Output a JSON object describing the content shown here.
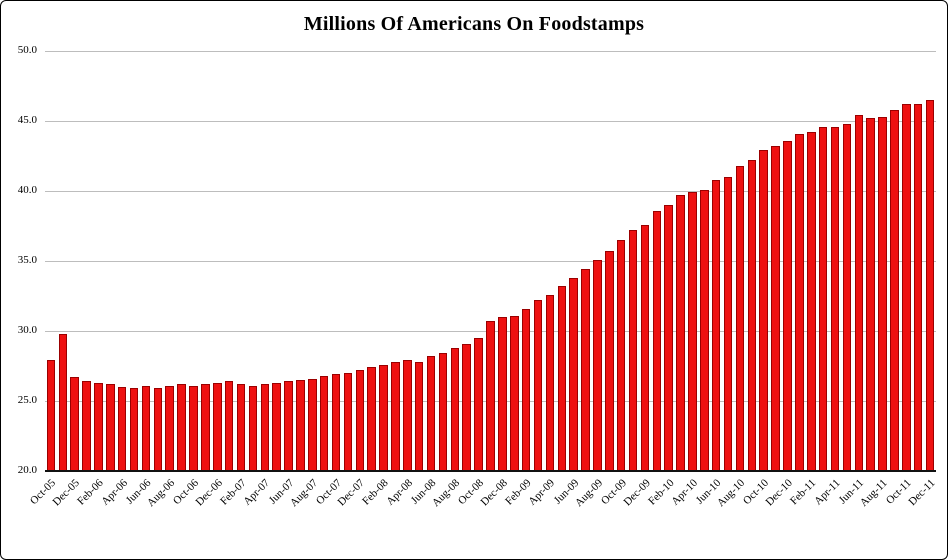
{
  "figure": {
    "background": "#ffffff",
    "border_color": "#000000"
  },
  "chart_data": {
    "type": "bar",
    "title": "Millions Of Americans On Foodstamps",
    "xlabel": "",
    "ylabel": "",
    "ylim": [
      20.0,
      50.0
    ],
    "yticks": [
      20.0,
      25.0,
      30.0,
      35.0,
      40.0,
      45.0,
      50.0
    ],
    "grid": true,
    "legend": "none",
    "x_label_every": 2,
    "bar_color": "#ee1111",
    "bar_border": "#9b0000",
    "categories": [
      "Oct-05",
      "Nov-05",
      "Dec-05",
      "Jan-06",
      "Feb-06",
      "Mar-06",
      "Apr-06",
      "May-06",
      "Jun-06",
      "Jul-06",
      "Aug-06",
      "Sep-06",
      "Oct-06",
      "Nov-06",
      "Dec-06",
      "Jan-07",
      "Feb-07",
      "Mar-07",
      "Apr-07",
      "May-07",
      "Jun-07",
      "Jul-07",
      "Aug-07",
      "Sep-07",
      "Oct-07",
      "Nov-07",
      "Dec-07",
      "Jan-08",
      "Feb-08",
      "Mar-08",
      "Apr-08",
      "May-08",
      "Jun-08",
      "Jul-08",
      "Aug-08",
      "Sep-08",
      "Oct-08",
      "Nov-08",
      "Dec-08",
      "Jan-09",
      "Feb-09",
      "Mar-09",
      "Apr-09",
      "May-09",
      "Jun-09",
      "Jul-09",
      "Aug-09",
      "Sep-09",
      "Oct-09",
      "Nov-09",
      "Dec-09",
      "Jan-10",
      "Feb-10",
      "Mar-10",
      "Apr-10",
      "May-10",
      "Jun-10",
      "Jul-10",
      "Aug-10",
      "Sep-10",
      "Oct-10",
      "Nov-10",
      "Dec-10",
      "Jan-11",
      "Feb-11",
      "Mar-11",
      "Apr-11",
      "May-11",
      "Jun-11",
      "Jul-11",
      "Aug-11",
      "Sep-11",
      "Oct-11",
      "Nov-11",
      "Dec-11"
    ],
    "values": [
      27.9,
      29.8,
      26.75,
      26.4,
      26.3,
      26.2,
      26.0,
      25.9,
      26.1,
      25.9,
      26.1,
      26.2,
      26.1,
      26.2,
      26.3,
      26.4,
      26.2,
      26.1,
      26.2,
      26.3,
      26.4,
      26.5,
      26.6,
      26.8,
      26.9,
      27.0,
      27.2,
      27.4,
      27.6,
      27.8,
      27.9,
      27.8,
      28.2,
      28.4,
      28.8,
      29.1,
      29.5,
      30.7,
      31.0,
      31.1,
      31.6,
      32.2,
      32.6,
      33.2,
      33.8,
      34.4,
      35.1,
      35.7,
      36.5,
      37.2,
      37.6,
      38.6,
      39.0,
      39.7,
      39.9,
      40.1,
      40.8,
      41.0,
      41.8,
      42.2,
      42.9,
      43.2,
      43.6,
      44.1,
      44.2,
      44.6,
      44.6,
      44.8,
      45.4,
      45.2,
      45.3,
      45.8,
      46.2,
      46.25,
      46.5
    ]
  }
}
